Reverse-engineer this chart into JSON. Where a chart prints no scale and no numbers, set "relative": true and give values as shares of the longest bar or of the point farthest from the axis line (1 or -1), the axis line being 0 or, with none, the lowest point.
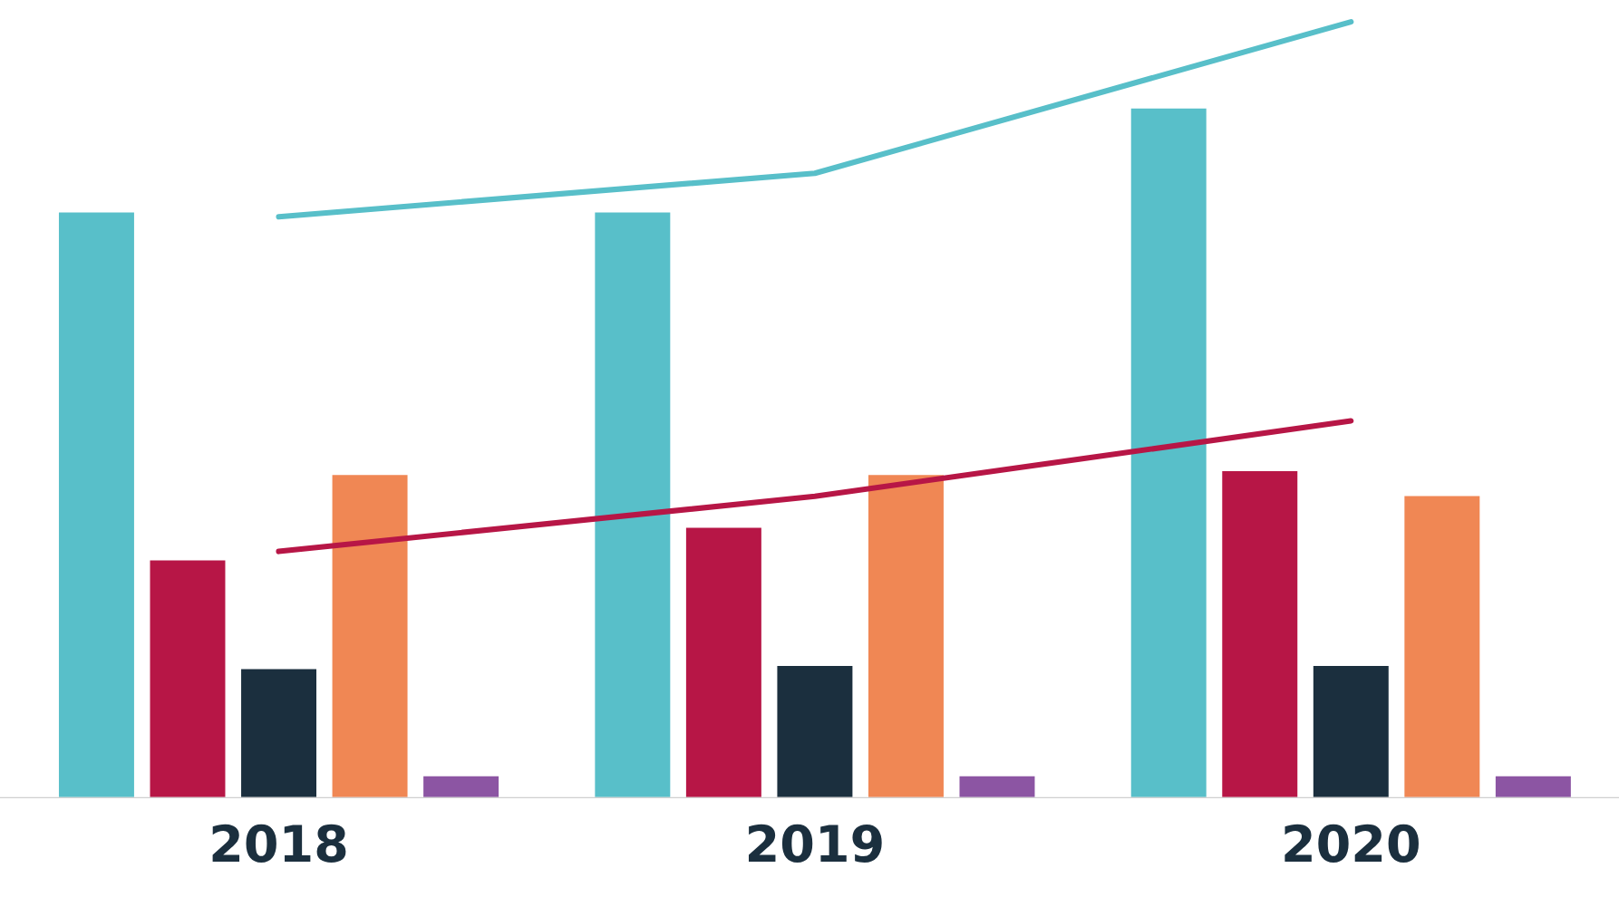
{
  "chart_data": {
    "type": "bar",
    "relative": true,
    "grid": false,
    "legend": false,
    "categories": [
      "2018",
      "2019",
      "2020"
    ],
    "series": [
      {
        "color": "#58bfc9",
        "values": [
          0.756,
          0.756,
          0.89
        ]
      },
      {
        "color": "#b71646",
        "values": [
          0.308,
          0.35,
          0.423
        ]
      },
      {
        "color": "#1b2f3e",
        "values": [
          0.168,
          0.172,
          0.172
        ]
      },
      {
        "color": "#f08754",
        "values": [
          0.418,
          0.418,
          0.391
        ]
      },
      {
        "color": "#8c55a3",
        "values": [
          0.03,
          0.03,
          0.03
        ]
      },
      {
        "type": "line",
        "color": "#58bfc9",
        "values": [
          0.749,
          0.805,
          1.0
        ]
      },
      {
        "type": "line",
        "color": "#b71646",
        "values": [
          0.318,
          0.389,
          0.486
        ]
      }
    ]
  }
}
